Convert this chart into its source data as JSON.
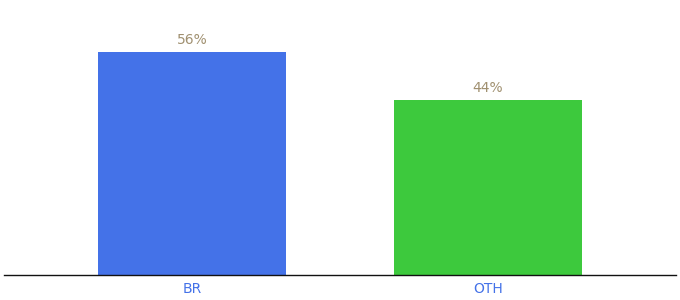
{
  "categories": [
    "BR",
    "OTH"
  ],
  "values": [
    56,
    44
  ],
  "bar_colors": [
    "#4472E8",
    "#3DC93D"
  ],
  "label_color": "#a09070",
  "label_fontsize": 10,
  "tick_color": "#4472E8",
  "tick_fontsize": 10,
  "background_color": "#ffffff",
  "ylim": [
    0,
    68
  ],
  "bar_width": 0.28,
  "x_positions": [
    0.28,
    0.72
  ],
  "xlim": [
    0.0,
    1.0
  ],
  "figsize": [
    6.8,
    3.0
  ],
  "dpi": 100
}
